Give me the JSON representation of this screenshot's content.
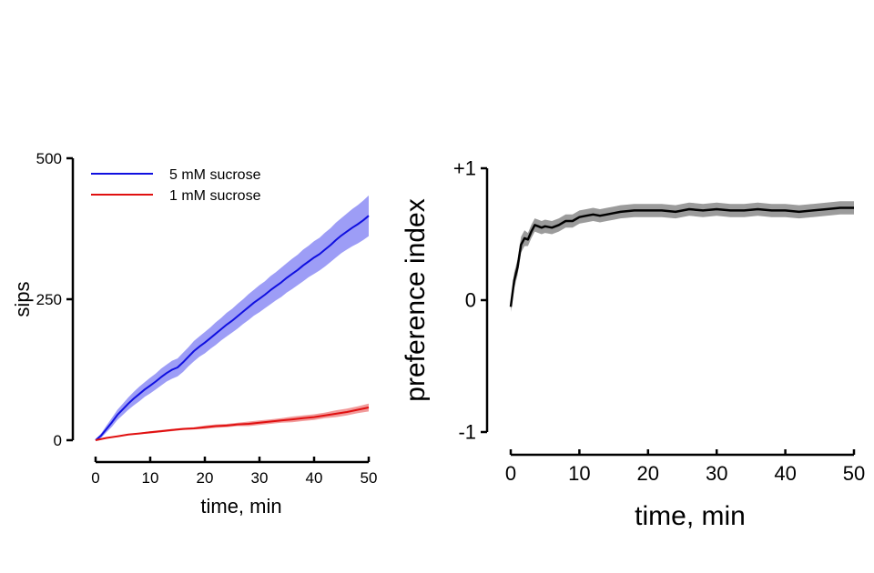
{
  "chart_data": [
    {
      "type": "line",
      "title": "",
      "xlabel": "time, min",
      "ylabel": "sips",
      "xlim": [
        0,
        50
      ],
      "ylim": [
        0,
        500
      ],
      "xticks": [
        "0",
        "10",
        "20",
        "30",
        "40",
        "50"
      ],
      "yticks": [
        "0",
        "250",
        "500"
      ],
      "ytick_values": [
        0,
        250,
        500
      ],
      "xtick_values": [
        0,
        10,
        20,
        30,
        40,
        50
      ],
      "legend_position": "top-left",
      "series": [
        {
          "name": "5 mM sucrose",
          "color": "#1010e0",
          "band_color": "#8c8cf5",
          "x": [
            0,
            1,
            2,
            3,
            4,
            5,
            6,
            7,
            8,
            9,
            10,
            11,
            12,
            13,
            14,
            15,
            16,
            17,
            18,
            19,
            20,
            21,
            22,
            23,
            24,
            25,
            26,
            27,
            28,
            29,
            30,
            31,
            32,
            33,
            34,
            35,
            36,
            37,
            38,
            39,
            40,
            41,
            42,
            43,
            44,
            45,
            46,
            47,
            48,
            49,
            50
          ],
          "y": [
            0,
            8,
            20,
            32,
            45,
            55,
            65,
            74,
            82,
            90,
            97,
            104,
            112,
            119,
            125,
            129,
            138,
            148,
            158,
            166,
            173,
            181,
            189,
            197,
            205,
            212,
            220,
            228,
            236,
            244,
            251,
            258,
            266,
            273,
            280,
            288,
            295,
            302,
            310,
            317,
            324,
            330,
            338,
            346,
            355,
            363,
            370,
            377,
            383,
            390,
            398
          ],
          "err": [
            2,
            4,
            6,
            8,
            9,
            10,
            11,
            12,
            13,
            13,
            14,
            14,
            15,
            15,
            16,
            16,
            17,
            17,
            18,
            18,
            19,
            19,
            20,
            20,
            21,
            21,
            22,
            22,
            23,
            23,
            24,
            24,
            25,
            25,
            26,
            26,
            27,
            27,
            28,
            28,
            29,
            29,
            30,
            30,
            31,
            31,
            32,
            33,
            34,
            35,
            36
          ]
        },
        {
          "name": "1 mM sucrose",
          "color": "#e01010",
          "band_color": "#f08a8a",
          "x": [
            0,
            2,
            4,
            6,
            8,
            10,
            12,
            14,
            16,
            18,
            20,
            22,
            24,
            26,
            28,
            30,
            32,
            34,
            36,
            38,
            40,
            42,
            44,
            46,
            48,
            50
          ],
          "y": [
            0,
            4,
            7,
            10,
            12,
            14,
            16,
            18,
            20,
            21,
            23,
            25,
            26,
            28,
            29,
            31,
            33,
            35,
            37,
            39,
            41,
            44,
            47,
            50,
            54,
            58
          ],
          "err": [
            1,
            1,
            1,
            1,
            1,
            2,
            2,
            2,
            2,
            2,
            3,
            3,
            3,
            3,
            4,
            4,
            4,
            4,
            5,
            5,
            5,
            5,
            6,
            6,
            6,
            7
          ]
        }
      ]
    },
    {
      "type": "line",
      "title": "",
      "xlabel": "time, min",
      "ylabel": "preference index",
      "xlim": [
        0,
        50
      ],
      "ylim": [
        -1,
        1
      ],
      "xticks": [
        "0",
        "10",
        "20",
        "30",
        "40",
        "50"
      ],
      "yticks": [
        "-1",
        "0",
        "+1"
      ],
      "ytick_values": [
        -1,
        0,
        1
      ],
      "xtick_values": [
        0,
        10,
        20,
        30,
        40,
        50
      ],
      "series": [
        {
          "color": "#000000",
          "band_color": "#8a8a8a",
          "x": [
            0,
            0.5,
            1,
            1.5,
            2,
            2.5,
            3,
            3.5,
            4,
            4.5,
            5,
            6,
            7,
            8,
            9,
            10,
            11,
            12,
            13,
            14,
            15,
            16,
            18,
            20,
            22,
            24,
            26,
            28,
            30,
            32,
            34,
            36,
            38,
            40,
            42,
            44,
            46,
            48,
            50
          ],
          "y": [
            -0.05,
            0.15,
            0.25,
            0.42,
            0.47,
            0.46,
            0.52,
            0.57,
            0.56,
            0.55,
            0.56,
            0.55,
            0.57,
            0.6,
            0.6,
            0.63,
            0.64,
            0.65,
            0.64,
            0.65,
            0.66,
            0.67,
            0.68,
            0.68,
            0.68,
            0.67,
            0.69,
            0.68,
            0.69,
            0.68,
            0.68,
            0.69,
            0.68,
            0.68,
            0.67,
            0.68,
            0.69,
            0.7,
            0.7
          ],
          "err": [
            0.04,
            0.06,
            0.06,
            0.06,
            0.06,
            0.05,
            0.05,
            0.05,
            0.05,
            0.05,
            0.05,
            0.05,
            0.05,
            0.05,
            0.05,
            0.05,
            0.05,
            0.05,
            0.05,
            0.05,
            0.05,
            0.05,
            0.05,
            0.05,
            0.05,
            0.05,
            0.05,
            0.05,
            0.05,
            0.05,
            0.05,
            0.05,
            0.05,
            0.05,
            0.05,
            0.05,
            0.05,
            0.05,
            0.05
          ]
        }
      ]
    }
  ]
}
